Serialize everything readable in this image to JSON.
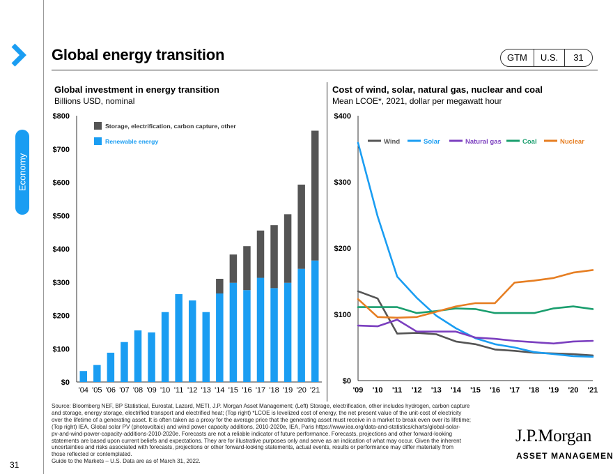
{
  "header": {
    "title": "Global energy transition",
    "tags": [
      "GTM",
      "U.S.",
      "31"
    ]
  },
  "sidebar": {
    "section": "Economy"
  },
  "colors": {
    "accent": "#1a9df2",
    "storage": "#555555",
    "renewable": "#1a9df2",
    "wind": "#555555",
    "solar": "#1a9df2",
    "natural_gas": "#7b3fbf",
    "coal": "#1a9e6e",
    "nuclear": "#e67e22"
  },
  "chart_data": [
    {
      "type": "bar",
      "stacked": true,
      "title": "Global investment in energy transition",
      "subtitle": "Billions USD, nominal",
      "categories": [
        "'04",
        "'05",
        "'06",
        "'07",
        "'08",
        "'09",
        "'10",
        "'11",
        "'12",
        "'13",
        "'14",
        "'15",
        "'16",
        "'17",
        "'18",
        "'19",
        "'20",
        "'21"
      ],
      "series": [
        {
          "name": "Renewable energy",
          "color_key": "renewable",
          "values": [
            33,
            51,
            88,
            120,
            155,
            149,
            210,
            264,
            245,
            210,
            266,
            298,
            276,
            313,
            282,
            298,
            340,
            365
          ]
        },
        {
          "name": "Storage, electrification, carbon capture, other",
          "color_key": "storage",
          "values": [
            0,
            0,
            0,
            0,
            0,
            0,
            0,
            0,
            0,
            0,
            44,
            85,
            132,
            142,
            189,
            206,
            253,
            390
          ]
        }
      ],
      "ylim": [
        0,
        800
      ],
      "yticks": [
        0,
        100,
        200,
        300,
        400,
        500,
        600,
        700,
        800
      ],
      "ytick_labels": [
        "$0",
        "$100",
        "$200",
        "$300",
        "$400",
        "$500",
        "$600",
        "$700",
        "$800"
      ],
      "legend": [
        "Storage, electrification, carbon capture, other",
        "Renewable energy"
      ],
      "legend_position": "top-left"
    },
    {
      "type": "line",
      "title": "Cost of wind, solar, natural gas, nuclear and coal",
      "subtitle": "Mean LCOE*, 2021, dollar per megawatt hour",
      "x": [
        "'09",
        "'10",
        "'11",
        "'12",
        "'13",
        "'14",
        "'15",
        "'16",
        "'17",
        "'18",
        "'19",
        "'20",
        "'21"
      ],
      "series": [
        {
          "name": "Wind",
          "color_key": "wind",
          "values": [
            135,
            124,
            71,
            72,
            70,
            59,
            55,
            47,
            45,
            42,
            41,
            40,
            38
          ]
        },
        {
          "name": "Solar",
          "color_key": "solar",
          "values": [
            359,
            248,
            157,
            125,
            98,
            79,
            64,
            55,
            50,
            43,
            40,
            37,
            36
          ]
        },
        {
          "name": "Natural gas",
          "color_key": "natural_gas",
          "values": [
            83,
            82,
            92,
            74,
            74,
            74,
            65,
            63,
            60,
            58,
            56,
            59,
            60
          ]
        },
        {
          "name": "Coal",
          "color_key": "coal",
          "values": [
            111,
            111,
            111,
            102,
            105,
            109,
            108,
            102,
            102,
            102,
            109,
            112,
            108
          ]
        },
        {
          "name": "Nuclear",
          "color_key": "nuclear",
          "values": [
            123,
            96,
            95,
            96,
            104,
            112,
            117,
            117,
            148,
            151,
            155,
            163,
            167
          ]
        }
      ],
      "ylim": [
        0,
        400
      ],
      "yticks": [
        0,
        100,
        200,
        300,
        400
      ],
      "ytick_labels": [
        "$0",
        "$100",
        "$200",
        "$300",
        "$400"
      ],
      "legend_position": "top"
    }
  ],
  "footer": {
    "lines": [
      "Source: Bloomberg NEF, BP Statistical, Eurostat, Lazard, METI, J.P. Morgan Asset Management; (Left) Storage, electrification, other includes hydrogen, carbon capture",
      "and storage, energy storage, electrified transport and electrified heat; (Top right) *LCOE is levelized cost of energy, the net present value of the unit-cost of electricity",
      "over the lifetime of a generating asset. It is often taken as a proxy for the average price that the generating asset must receive in a market to break even over its lifetime;",
      "(Top right) IEA, Global solar PV (photovoltaic) and wind power capacity additions, 2010-2020e, IEA, Paris https://www.iea.org/data-and-statistics/charts/global-solar-",
      "pv-and-wind-power-capacity-additions-2010-2020e. Forecasts are not a reliable indicator of future performance. Forecasts, projections and other forward-looking",
      "statements are based upon current beliefs and expectations. They are for illustrative purposes only and serve as an indication of what may occur. Given the inherent",
      "uncertainties and risks associated with forecasts, projections or other forward-looking statements, actual events, results or performance may differ materially from",
      "those reflected or contemplated.",
      "Guide to the Markets – U.S. Data are as of March 31, 2022."
    ]
  },
  "page_number": "31",
  "logo": {
    "top": "J.P.Morgan",
    "bottom": "ASSET MANAGEMENT"
  }
}
